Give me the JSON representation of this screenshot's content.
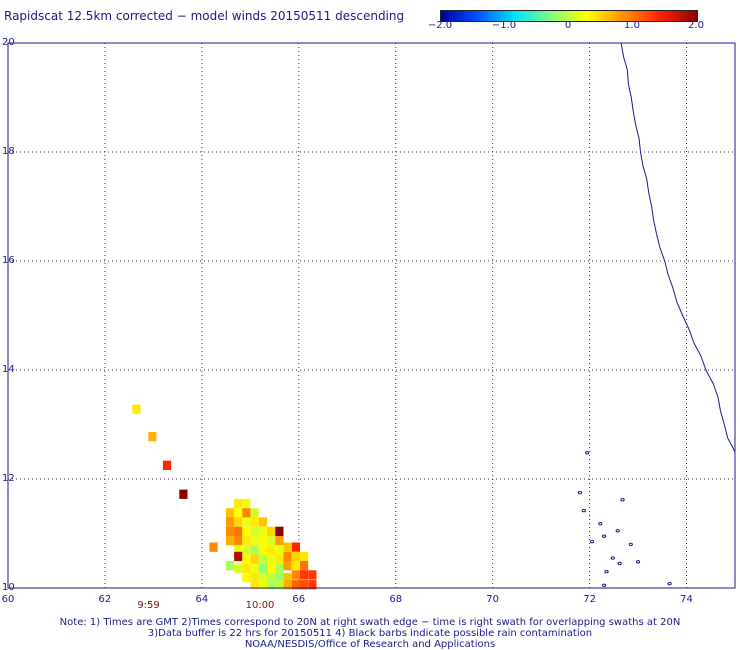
{
  "title": "Rapidscat 12.5km corrected − model winds 20150511 descending",
  "colorbar": {
    "ticks": [
      "−2.0",
      "−1.0",
      "0",
      "1.0",
      "2.0"
    ],
    "tick_values": [
      -2.0,
      -1.0,
      0,
      1.0,
      2.0
    ],
    "range": [
      -2.0,
      2.0
    ],
    "colors": [
      "#0000a0",
      "#0050ff",
      "#00e0ff",
      "#80ff80",
      "#ffff00",
      "#ff9000",
      "#ff2000",
      "#8b0000"
    ]
  },
  "map": {
    "lon_range": [
      60,
      75
    ],
    "lat_range": [
      10,
      20
    ],
    "x_ticks": [
      "60",
      "62",
      "64",
      "66",
      "68",
      "70",
      "72",
      "74"
    ],
    "x_tick_values": [
      60,
      62,
      64,
      66,
      68,
      70,
      72,
      74
    ],
    "y_ticks": [
      "20",
      "18",
      "16",
      "14",
      "12",
      "10"
    ],
    "y_tick_values": [
      20,
      18,
      16,
      14,
      12,
      10
    ],
    "grid": true,
    "coastline_color": "#1a1a8c",
    "time_labels": [
      {
        "text": "9:59",
        "lon": 62.9
      },
      {
        "text": "10:00",
        "lon": 65.2
      }
    ],
    "cells": [
      {
        "lon": 62.65,
        "lat": 13.28,
        "value": 0.4
      },
      {
        "lon": 62.98,
        "lat": 12.78,
        "value": 0.7
      },
      {
        "lon": 63.28,
        "lat": 12.25,
        "value": 1.4
      },
      {
        "lon": 63.62,
        "lat": 11.72,
        "value": 2.0
      },
      {
        "lon": 64.75,
        "lat": 11.55,
        "value": 0.4
      },
      {
        "lon": 64.92,
        "lat": 11.55,
        "value": 0.2
      },
      {
        "lon": 64.58,
        "lat": 11.38,
        "value": 0.6
      },
      {
        "lon": 64.75,
        "lat": 11.38,
        "value": 0.3
      },
      {
        "lon": 64.92,
        "lat": 11.38,
        "value": 0.9
      },
      {
        "lon": 65.09,
        "lat": 11.38,
        "value": 0.1
      },
      {
        "lon": 64.58,
        "lat": 11.21,
        "value": 0.8
      },
      {
        "lon": 64.75,
        "lat": 11.21,
        "value": 0.5
      },
      {
        "lon": 64.92,
        "lat": 11.21,
        "value": 0.2
      },
      {
        "lon": 65.09,
        "lat": 11.21,
        "value": 0.4
      },
      {
        "lon": 65.26,
        "lat": 11.21,
        "value": 0.6
      },
      {
        "lon": 64.58,
        "lat": 11.04,
        "value": 0.9
      },
      {
        "lon": 64.75,
        "lat": 11.04,
        "value": 1.0
      },
      {
        "lon": 64.92,
        "lat": 11.04,
        "value": 0.3
      },
      {
        "lon": 65.09,
        "lat": 11.04,
        "value": 0.1
      },
      {
        "lon": 65.26,
        "lat": 11.04,
        "value": 0.2
      },
      {
        "lon": 65.43,
        "lat": 11.04,
        "value": 0.5
      },
      {
        "lon": 65.6,
        "lat": 11.04,
        "value": 2.0
      },
      {
        "lon": 64.58,
        "lat": 10.87,
        "value": 0.7
      },
      {
        "lon": 64.75,
        "lat": 10.87,
        "value": 0.9
      },
      {
        "lon": 64.92,
        "lat": 10.87,
        "value": 0.4
      },
      {
        "lon": 65.09,
        "lat": 10.87,
        "value": 0.2
      },
      {
        "lon": 65.26,
        "lat": 10.87,
        "value": 0.3
      },
      {
        "lon": 65.43,
        "lat": 10.87,
        "value": 0.1
      },
      {
        "lon": 65.6,
        "lat": 10.87,
        "value": 0.8
      },
      {
        "lon": 64.24,
        "lat": 10.75,
        "value": 0.9
      },
      {
        "lon": 64.75,
        "lat": 10.7,
        "value": 0.2
      },
      {
        "lon": 64.92,
        "lat": 10.7,
        "value": 0.1
      },
      {
        "lon": 65.09,
        "lat": 10.7,
        "value": -0.1
      },
      {
        "lon": 65.26,
        "lat": 10.7,
        "value": 0.3
      },
      {
        "lon": 65.43,
        "lat": 10.7,
        "value": 0.4
      },
      {
        "lon": 65.6,
        "lat": 10.7,
        "value": 0.2
      },
      {
        "lon": 65.77,
        "lat": 10.75,
        "value": 0.6
      },
      {
        "lon": 65.94,
        "lat": 10.75,
        "value": 1.4
      },
      {
        "lon": 64.75,
        "lat": 10.58,
        "value": 1.8
      },
      {
        "lon": 64.92,
        "lat": 10.53,
        "value": 0.3
      },
      {
        "lon": 65.09,
        "lat": 10.53,
        "value": 0.5
      },
      {
        "lon": 65.26,
        "lat": 10.53,
        "value": 0.0
      },
      {
        "lon": 65.43,
        "lat": 10.53,
        "value": 0.2
      },
      {
        "lon": 65.6,
        "lat": 10.53,
        "value": 0.4
      },
      {
        "lon": 65.77,
        "lat": 10.58,
        "value": 0.9
      },
      {
        "lon": 65.94,
        "lat": 10.58,
        "value": 0.5
      },
      {
        "lon": 66.11,
        "lat": 10.58,
        "value": 0.4
      },
      {
        "lon": 64.58,
        "lat": 10.41,
        "value": -0.1
      },
      {
        "lon": 64.75,
        "lat": 10.36,
        "value": 0.1
      },
      {
        "lon": 64.92,
        "lat": 10.36,
        "value": 0.4
      },
      {
        "lon": 65.09,
        "lat": 10.36,
        "value": 0.2
      },
      {
        "lon": 65.26,
        "lat": 10.36,
        "value": -0.2
      },
      {
        "lon": 65.43,
        "lat": 10.36,
        "value": 0.3
      },
      {
        "lon": 65.6,
        "lat": 10.36,
        "value": -0.1
      },
      {
        "lon": 65.77,
        "lat": 10.41,
        "value": 0.8
      },
      {
        "lon": 65.94,
        "lat": 10.41,
        "value": 0.4
      },
      {
        "lon": 66.11,
        "lat": 10.41,
        "value": 1.0
      },
      {
        "lon": 64.92,
        "lat": 10.19,
        "value": 0.3
      },
      {
        "lon": 65.09,
        "lat": 10.19,
        "value": 0.4
      },
      {
        "lon": 65.26,
        "lat": 10.19,
        "value": 0.1
      },
      {
        "lon": 65.43,
        "lat": 10.19,
        "value": 0.0
      },
      {
        "lon": 65.6,
        "lat": 10.19,
        "value": -0.2
      },
      {
        "lon": 65.77,
        "lat": 10.19,
        "value": 0.6
      },
      {
        "lon": 65.94,
        "lat": 10.24,
        "value": 0.9
      },
      {
        "lon": 66.11,
        "lat": 10.24,
        "value": 1.3
      },
      {
        "lon": 66.28,
        "lat": 10.24,
        "value": 1.3
      },
      {
        "lon": 65.09,
        "lat": 10.06,
        "value": 0.4
      },
      {
        "lon": 65.26,
        "lat": 10.06,
        "value": 0.2
      },
      {
        "lon": 65.43,
        "lat": 10.06,
        "value": -0.1
      },
      {
        "lon": 65.6,
        "lat": 10.06,
        "value": 0.0
      },
      {
        "lon": 65.77,
        "lat": 10.06,
        "value": 0.7
      },
      {
        "lon": 65.94,
        "lat": 10.06,
        "value": 1.1
      },
      {
        "lon": 66.11,
        "lat": 10.06,
        "value": 1.2
      },
      {
        "lon": 66.28,
        "lat": 10.06,
        "value": 1.3
      }
    ],
    "coastline": [
      [
        72.65,
        20.0
      ],
      [
        72.7,
        19.75
      ],
      [
        72.78,
        19.5
      ],
      [
        72.8,
        19.25
      ],
      [
        72.86,
        19.0
      ],
      [
        72.9,
        18.75
      ],
      [
        72.95,
        18.5
      ],
      [
        73.02,
        18.25
      ],
      [
        73.05,
        18.0
      ],
      [
        73.1,
        17.75
      ],
      [
        73.18,
        17.5
      ],
      [
        73.22,
        17.25
      ],
      [
        73.28,
        17.0
      ],
      [
        73.32,
        16.75
      ],
      [
        73.38,
        16.5
      ],
      [
        73.45,
        16.25
      ],
      [
        73.55,
        16.0
      ],
      [
        73.62,
        15.75
      ],
      [
        73.72,
        15.5
      ],
      [
        73.8,
        15.25
      ],
      [
        73.92,
        15.0
      ],
      [
        74.05,
        14.75
      ],
      [
        74.15,
        14.5
      ],
      [
        74.3,
        14.25
      ],
      [
        74.4,
        14.0
      ],
      [
        74.55,
        13.75
      ],
      [
        74.65,
        13.5
      ],
      [
        74.7,
        13.25
      ],
      [
        74.78,
        13.0
      ],
      [
        74.85,
        12.75
      ],
      [
        75.0,
        12.5
      ]
    ],
    "islands": [
      [
        71.88,
        11.42
      ],
      [
        72.22,
        11.18
      ],
      [
        72.58,
        11.05
      ],
      [
        72.3,
        10.95
      ],
      [
        72.05,
        10.85
      ],
      [
        72.48,
        10.55
      ],
      [
        72.62,
        10.45
      ],
      [
        73.0,
        10.48
      ],
      [
        72.35,
        10.3
      ],
      [
        71.95,
        12.48
      ],
      [
        71.8,
        11.75
      ],
      [
        72.68,
        11.62
      ],
      [
        72.3,
        10.05
      ],
      [
        73.65,
        10.08
      ],
      [
        72.85,
        10.8
      ]
    ]
  },
  "notes": [
    "Note: 1) Times are GMT 2)Times correspond to 20N at right swath edge − time is right swath for overlapping swaths at 20N",
    "3)Data buffer is 22 hrs for 20150511 4) Black barbs indicate possible rain contamination",
    "NOAA/NESDIS/Office of Research and Applications"
  ]
}
